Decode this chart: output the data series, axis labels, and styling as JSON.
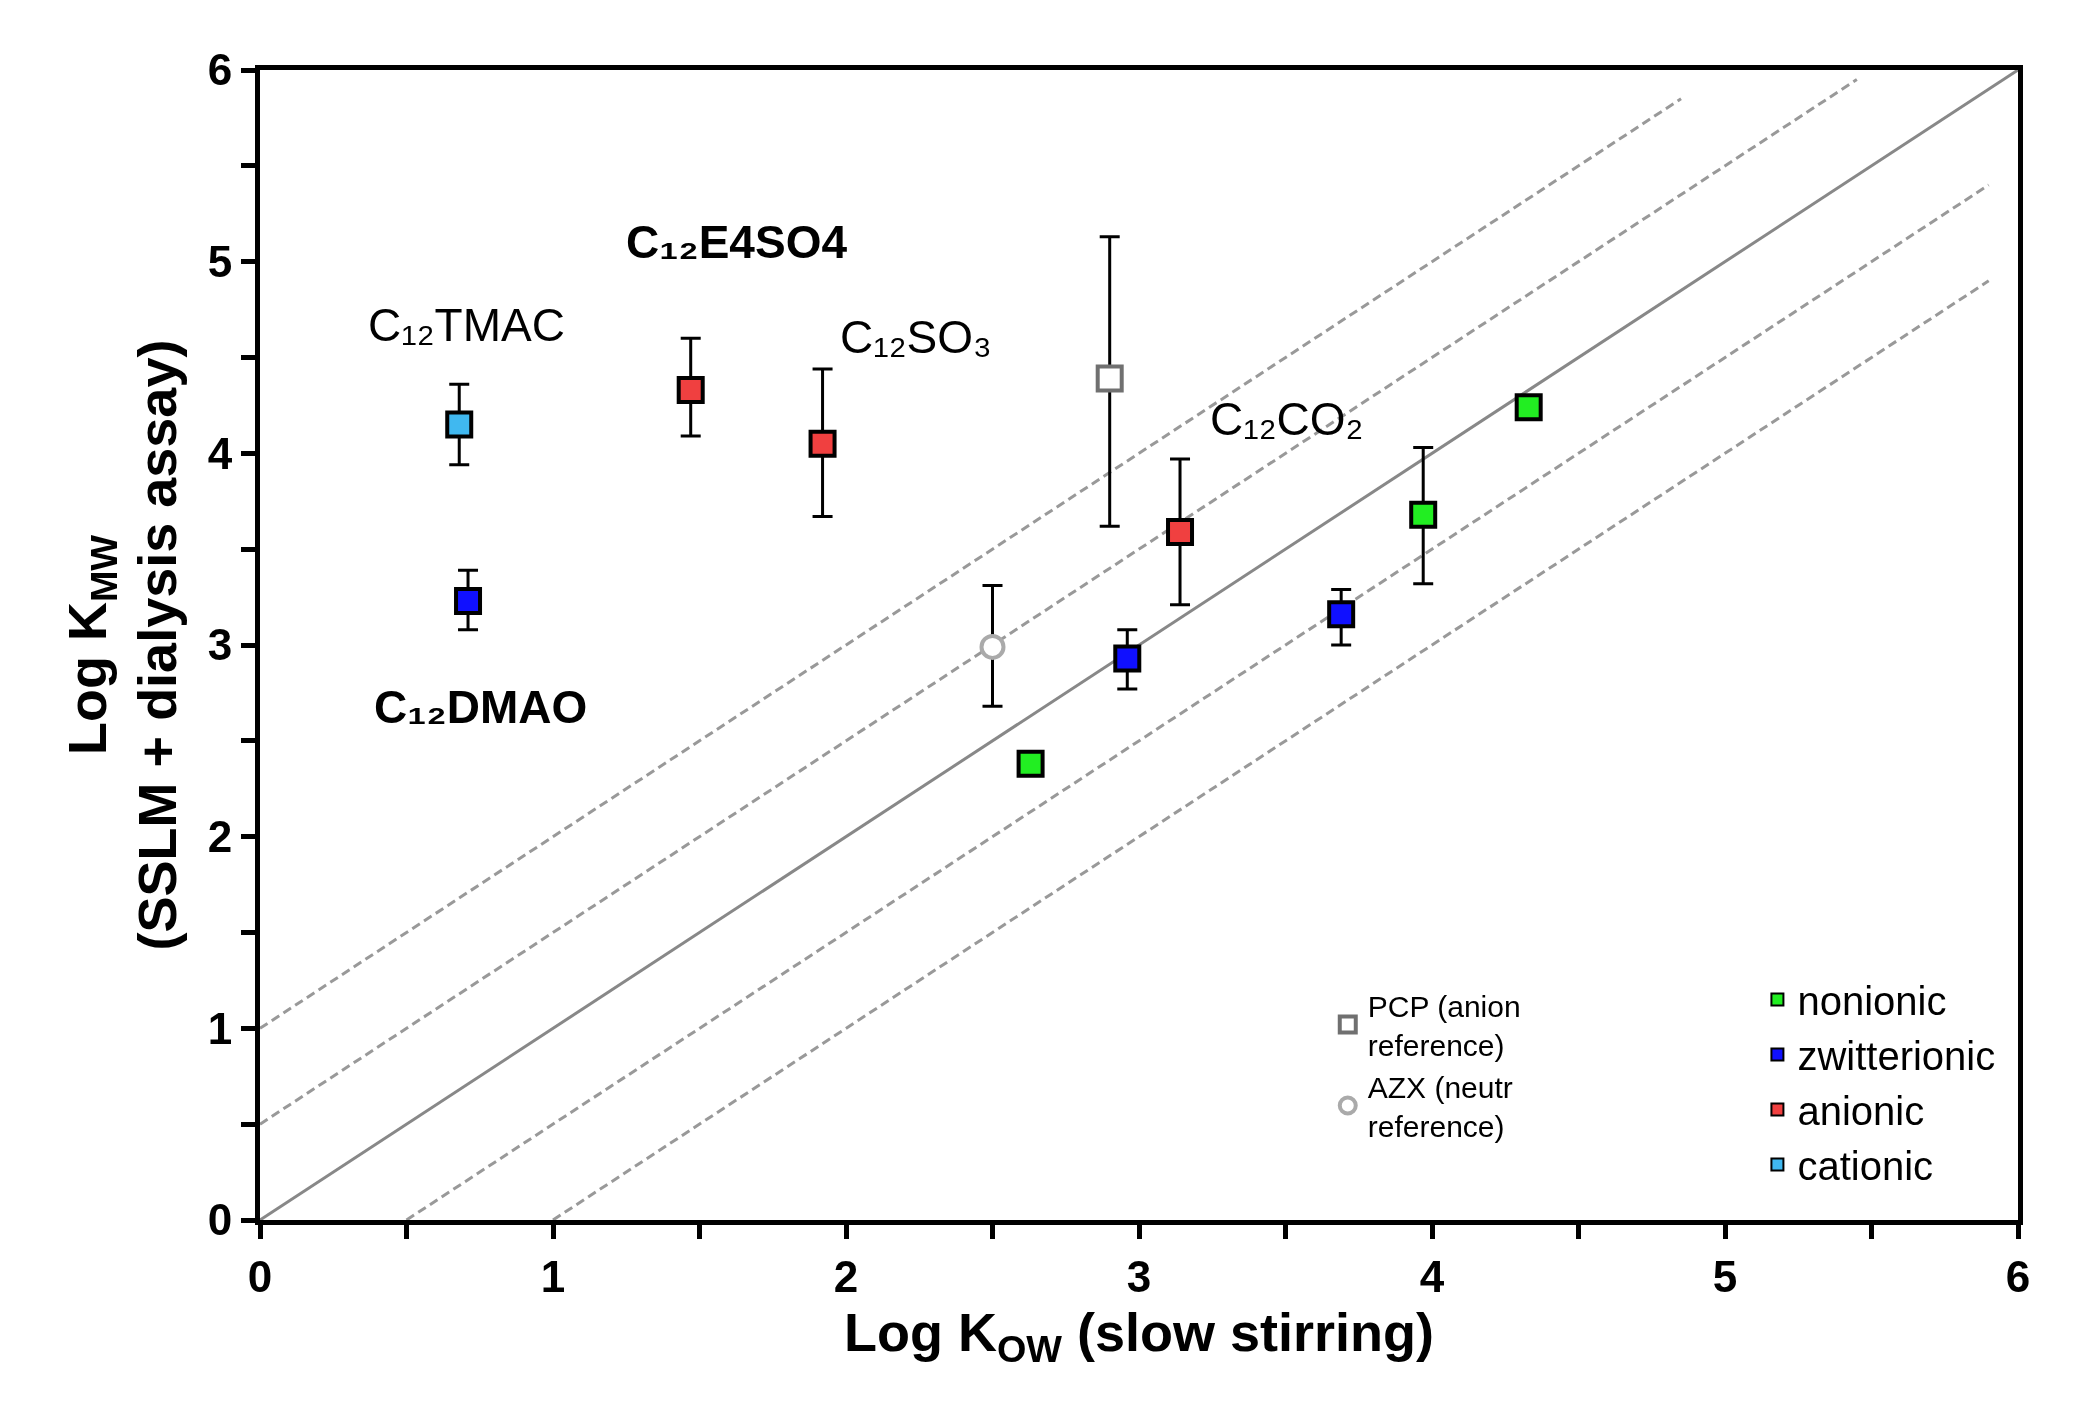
{
  "chart_data": {
    "type": "scatter",
    "xlabel": "Log K$_{OW}$ (slow stirring)",
    "ylabel": "Log K$_{MW}$\n(SSLM + dialysis assay)",
    "xlim": [
      0,
      6
    ],
    "ylim": [
      0,
      6
    ],
    "xticks": [
      0,
      {
        "value": 0.5,
        "label": null
      },
      1,
      {
        "value": 1.5,
        "label": null
      },
      2,
      {
        "value": 2.5,
        "label": null
      },
      3,
      {
        "value": 3.5,
        "label": null
      },
      4,
      {
        "value": 4.5,
        "label": null
      },
      5,
      {
        "value": 5.5,
        "label": null
      },
      6
    ],
    "yticks": [
      0,
      {
        "value": 0.5,
        "label": null
      },
      1,
      {
        "value": 1.5,
        "label": null
      },
      2,
      {
        "value": 2.5,
        "label": null
      },
      3,
      {
        "value": 3.5,
        "label": null
      },
      4,
      {
        "value": 4.5,
        "label": null
      },
      5,
      {
        "value": 5.5,
        "label": null
      },
      6
    ],
    "legend": "bottom right",
    "series": [
      {
        "type": "line",
        "color": "#888888",
        "line_style": "solid",
        "marker": "none",
        "x": [
          0,
          6
        ],
        "values": [
          0,
          6
        ]
      },
      {
        "type": "line",
        "color": "#999999",
        "line_style": "dashed",
        "marker": "none",
        "x": [
          0,
          4.85
        ],
        "values": [
          1,
          5.85
        ]
      },
      {
        "type": "line",
        "color": "#999999",
        "line_style": "dashed",
        "marker": "none",
        "x": [
          0,
          5.45
        ],
        "values": [
          0.5,
          5.95
        ]
      },
      {
        "type": "line",
        "color": "#999999",
        "line_style": "dashed",
        "marker": "none",
        "x": [
          0.5,
          5.9
        ],
        "values": [
          0,
          5.4
        ]
      },
      {
        "type": "line",
        "color": "#999999",
        "line_style": "dashed",
        "marker": "none",
        "x": [
          1,
          5.9
        ],
        "values": [
          0,
          4.9
        ]
      },
      {
        "name": "nonionic",
        "color": "#22ee22",
        "marker": "square",
        "x": [
          2.63,
          3.97,
          4.33
        ],
        "values": [
          2.38,
          3.68,
          4.24
        ],
        "errors": [
          null,
          [
            3.32,
            4.03
          ],
          null
        ]
      },
      {
        "name": "zwitterionic",
        "color": "#1010ff",
        "marker": "square",
        "x": [
          0.71,
          2.96,
          3.69
        ],
        "values": [
          3.23,
          2.93,
          3.16
        ],
        "errors": [
          [
            3.08,
            3.39
          ],
          [
            2.77,
            3.08
          ],
          [
            3.0,
            3.29
          ]
        ]
      },
      {
        "name": "anionic",
        "color": "#f04040",
        "marker": "square",
        "x": [
          1.47,
          1.92,
          3.14
        ],
        "values": [
          4.33,
          4.05,
          3.59
        ],
        "errors": [
          [
            4.09,
            4.6
          ],
          [
            3.67,
            4.44
          ],
          [
            3.21,
            3.97
          ]
        ]
      },
      {
        "name": "cationic",
        "color": "#40b8f0",
        "marker": "square",
        "x": [
          0.68
        ],
        "values": [
          4.15
        ],
        "errors": [
          [
            3.94,
            4.36
          ]
        ]
      },
      {
        "name": "PCP (anion\nreference)",
        "color": "#707070",
        "marker": "square-open",
        "x": [
          2.9
        ],
        "values": [
          4.39
        ],
        "errors": [
          [
            3.62,
            5.13
          ]
        ]
      },
      {
        "name": "AZX (neutr\nreference)",
        "color": "#aaaaaa",
        "marker": "circle-open",
        "x": [
          2.5
        ],
        "values": [
          2.99
        ],
        "errors": [
          [
            2.68,
            3.31
          ]
        ]
      }
    ],
    "annotations": [
      {
        "text": "C₁₂TMAC",
        "x": 0.68,
        "y": 4.15
      },
      {
        "text": "C₁₂E4SO4",
        "x": 1.47,
        "y": 4.33
      },
      {
        "text": "C₁₂SO₃",
        "x": 1.92,
        "y": 4.05
      },
      {
        "text": "C₁₂CO₂",
        "x": 3.14,
        "y": 3.59
      },
      {
        "text": "C₁₂DMAO",
        "x": 0.71,
        "y": 3.23
      }
    ]
  }
}
